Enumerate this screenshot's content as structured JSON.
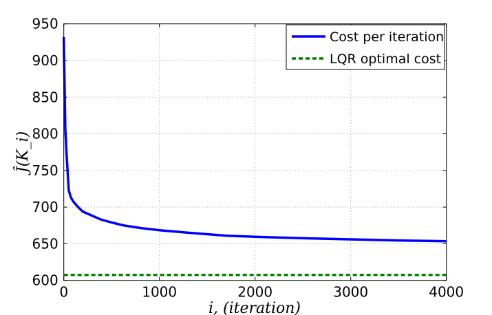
{
  "chart_data": {
    "type": "line",
    "xlabel": "i, (iteration)",
    "ylabel": "Ĵ(K_i)",
    "xlim": [
      0,
      4000
    ],
    "ylim": [
      600,
      950
    ],
    "xticks": [
      0,
      1000,
      2000,
      3000,
      4000
    ],
    "yticks": [
      600,
      650,
      700,
      750,
      800,
      850,
      900,
      950
    ],
    "grid": true,
    "legend_position": "top-right",
    "series": [
      {
        "name": "Cost per iteration",
        "color": "#0000ff",
        "style": "solid",
        "x": [
          0,
          16,
          30,
          52,
          75,
          100,
          150,
          197,
          300,
          388,
          500,
          628,
          800,
          1000,
          1300,
          1706,
          2000,
          2500,
          3000,
          3500,
          4000
        ],
        "y": [
          932,
          807,
          770,
          723,
          713,
          707.5,
          700,
          694,
          688,
          683,
          679,
          675,
          671.5,
          668.5,
          665,
          661,
          659.5,
          657.5,
          656,
          654.5,
          653.5
        ]
      },
      {
        "name": "LQR optimal cost",
        "color": "#008000",
        "style": "dashed",
        "x": [
          0,
          4000
        ],
        "y": [
          607.5,
          607.5
        ]
      }
    ]
  }
}
